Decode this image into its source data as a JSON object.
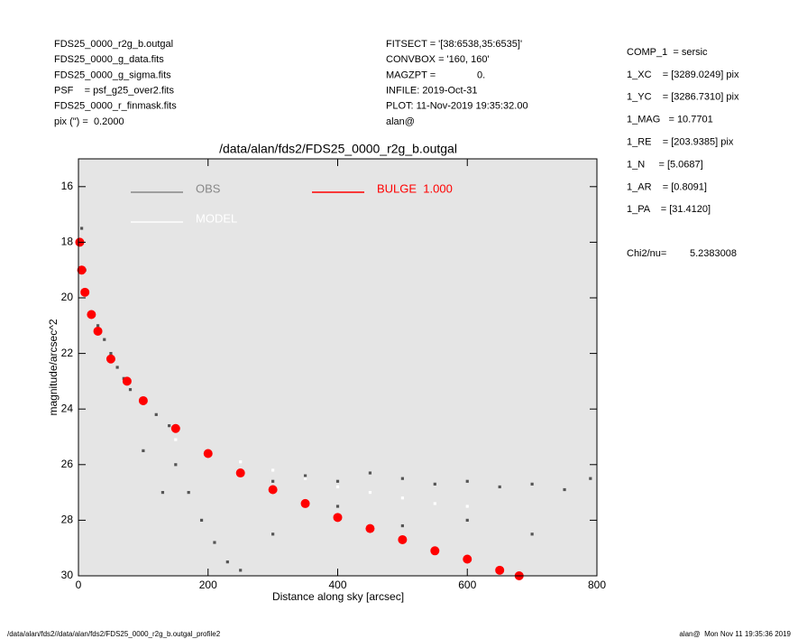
{
  "header": {
    "left": [
      "FDS25_0000_r2g_b.outgal",
      "FDS25_0000_g_data.fits",
      "FDS25_0000_g_sigma.fits",
      "PSF    = psf_g25_over2.fits",
      "FDS25_0000_r_finmask.fits",
      "pix (\") =  0.2000"
    ],
    "center": [
      "FITSECT = '[38:6538,35:6535]'",
      "CONVBOX = '160, 160'",
      "MAGZPT =               0.",
      "INFILE: 2019-Oct-31",
      "PLOT: 11-Nov-2019 19:35:32.00",
      "alan@"
    ],
    "right": [
      "COMP_1  = sersic",
      "1_XC    = [3289.0249] pix",
      "1_YC    = [3286.7310] pix",
      "1_MAG   = 10.7701",
      "1_RE    = [203.9385] pix",
      "1_N     = [5.0687]",
      "1_AR    = [0.8091]",
      "1_PA    = [31.4120]"
    ],
    "chi2_label": "Chi2/nu=",
    "chi2_value": "5.2383008"
  },
  "chart_data": {
    "type": "scatter",
    "title": "/data/alan/fds2/FDS25_0000_r2g_b.outgal",
    "xlabel": "Distance along sky [arcsec]",
    "ylabel": "magnitude/arcsec^2",
    "xlim": [
      0,
      800
    ],
    "xticks": [
      0,
      200,
      400,
      600,
      800
    ],
    "ylim": [
      30,
      15
    ],
    "yticks": [
      16,
      18,
      20,
      22,
      24,
      26,
      28,
      30
    ],
    "background": "#e5e5e5",
    "series": [
      {
        "name": "OBS",
        "color": "#888888",
        "x": [
          5,
          10,
          20,
          30,
          40,
          50,
          60,
          70,
          80,
          100,
          120,
          140,
          150,
          170,
          190,
          210,
          230,
          250,
          300,
          350,
          400,
          450,
          500,
          550,
          600,
          650,
          700,
          750,
          790,
          300,
          400,
          500,
          600,
          700,
          100,
          130
        ],
        "values": [
          17.5,
          19,
          20.6,
          21.0,
          21.5,
          22,
          22.5,
          22.9,
          23.3,
          23.8,
          24.2,
          24.6,
          26,
          27,
          28,
          28.8,
          29.5,
          29.8,
          26.6,
          26.4,
          26.6,
          26.3,
          26.5,
          26.7,
          26.6,
          26.8,
          26.7,
          26.9,
          26.5,
          28.5,
          27.5,
          28.2,
          28,
          28.5,
          25.5,
          27
        ]
      },
      {
        "name": "MODEL",
        "color": "#ffffff",
        "x": [
          150,
          200,
          250,
          300,
          350,
          400,
          450,
          500,
          550,
          600
        ],
        "values": [
          25.1,
          25.5,
          25.9,
          26.2,
          26.5,
          26.8,
          27.0,
          27.2,
          27.4,
          27.5
        ]
      },
      {
        "name": "BULGE  1.000",
        "color": "#ff0000",
        "x": [
          2,
          5,
          10,
          20,
          30,
          50,
          75,
          100,
          150,
          200,
          250,
          300,
          350,
          400,
          450,
          500,
          550,
          600,
          650,
          680
        ],
        "values": [
          18.0,
          19,
          19.8,
          20.6,
          21.2,
          22.2,
          23.0,
          23.7,
          24.7,
          25.6,
          26.3,
          26.9,
          27.4,
          27.9,
          28.3,
          28.7,
          29.1,
          29.4,
          29.8,
          30
        ]
      }
    ]
  },
  "footer": {
    "left": "/data/alan/fds2//data/alan/fds2/FDS25_0000_r2g_b.outgal_profile2",
    "right": "alan@  Mon Nov 11 19:35:36 2019"
  }
}
